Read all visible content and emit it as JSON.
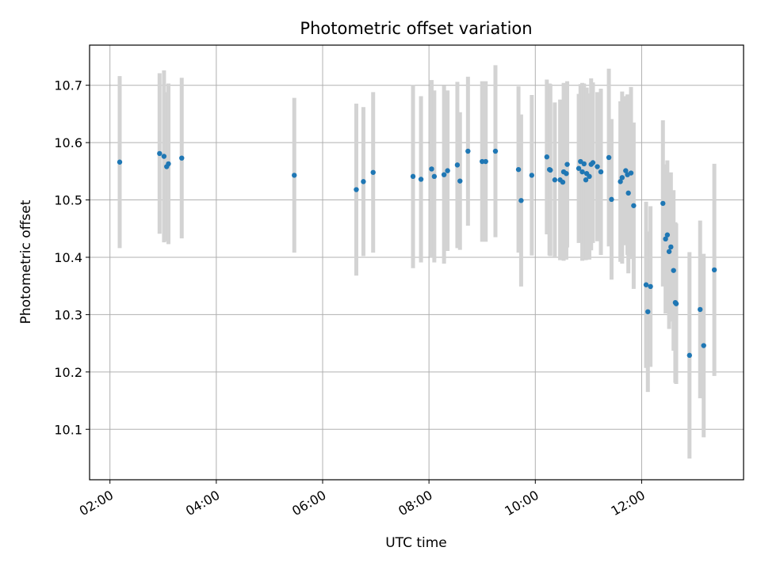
{
  "chart_data": {
    "type": "scatter",
    "title": "Photometric offset variation",
    "xlabel": "UTC time",
    "ylabel": "Photometric offset",
    "xlim": [
      "01:37",
      "13:55"
    ],
    "ylim": [
      10.012,
      10.77
    ],
    "x_ticks": [
      "02:00",
      "04:00",
      "06:00",
      "08:00",
      "10:00",
      "12:00"
    ],
    "y_ticks": [
      10.1,
      10.2,
      10.3,
      10.4,
      10.5,
      10.6,
      10.7
    ],
    "grid": true,
    "colors": {
      "points": "#1f77b4",
      "errorbars": "#d3d3d3",
      "grid": "#b0b0b0"
    },
    "series": [
      {
        "x": [
          "02:11",
          "02:56",
          "03:01",
          "03:04",
          "03:06",
          "03:21",
          "05:28",
          "06:38",
          "06:46",
          "06:57",
          "07:42",
          "07:51",
          "08:03",
          "08:06",
          "08:17",
          "08:21",
          "08:32",
          "08:35",
          "08:44",
          "09:00",
          "09:04",
          "09:15",
          "09:41",
          "09:44",
          "09:56",
          "10:13",
          "10:16",
          "10:17",
          "10:22",
          "10:28",
          "10:31",
          "10:32",
          "10:35",
          "10:36",
          "10:49",
          "10:51",
          "10:53",
          "10:55",
          "10:57",
          "10:58",
          "11:01",
          "11:03",
          "11:05",
          "11:10",
          "11:14",
          "11:23",
          "11:26",
          "11:36",
          "11:38",
          "11:42",
          "11:44",
          "11:45",
          "11:48",
          "11:51",
          "12:05",
          "12:07",
          "12:10",
          "12:24",
          "12:27",
          "12:29",
          "12:31",
          "12:33",
          "12:36",
          "12:38",
          "12:39",
          "12:54",
          "13:06",
          "13:10",
          "13:22"
        ],
        "y": [
          10.566,
          10.581,
          10.576,
          10.558,
          10.563,
          10.573,
          10.543,
          10.518,
          10.532,
          10.548,
          10.541,
          10.536,
          10.554,
          10.541,
          10.544,
          10.551,
          10.561,
          10.533,
          10.585,
          10.567,
          10.567,
          10.585,
          10.553,
          10.499,
          10.543,
          10.575,
          10.553,
          10.552,
          10.535,
          10.535,
          10.531,
          10.549,
          10.546,
          10.562,
          10.555,
          10.567,
          10.549,
          10.563,
          10.535,
          10.546,
          10.541,
          10.562,
          10.565,
          10.558,
          10.549,
          10.574,
          10.501,
          10.532,
          10.539,
          10.551,
          10.544,
          10.512,
          10.547,
          10.49,
          10.352,
          10.305,
          10.349,
          10.494,
          10.432,
          10.439,
          10.41,
          10.418,
          10.377,
          10.321,
          10.319,
          10.229,
          10.309,
          10.246,
          10.378
        ],
        "yerr": [
          0.15,
          0.14,
          0.15,
          0.13,
          0.14,
          0.14,
          0.135,
          0.15,
          0.13,
          0.14,
          0.16,
          0.145,
          0.155,
          0.15,
          0.155,
          0.14,
          0.145,
          0.12,
          0.13,
          0.14,
          0.14,
          0.15,
          0.145,
          0.15,
          0.14,
          0.135,
          0.15,
          0.15,
          0.135,
          0.14,
          0.135,
          0.155,
          0.15,
          0.145,
          0.13,
          0.135,
          0.155,
          0.14,
          0.14,
          0.15,
          0.145,
          0.15,
          0.14,
          0.13,
          0.145,
          0.155,
          0.14,
          0.14,
          0.15,
          0.13,
          0.14,
          0.14,
          0.15,
          0.145,
          0.145,
          0.14,
          0.14,
          0.145,
          0.13,
          0.13,
          0.135,
          0.13,
          0.14,
          0.14,
          0.14,
          0.18,
          0.155,
          0.16,
          0.185
        ]
      }
    ]
  }
}
